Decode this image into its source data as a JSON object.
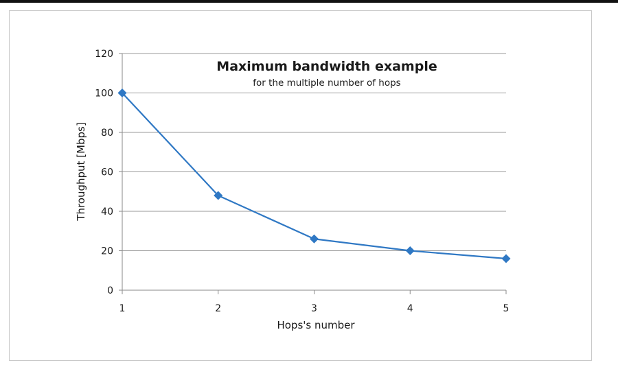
{
  "chart_data": {
    "type": "line",
    "title": "Maximum bandwidth example",
    "subtitle": "for the multiple number of hops",
    "xlabel": "Hops's number",
    "ylabel": "Throughput [Mbps]",
    "x": [
      1,
      2,
      3,
      4,
      5
    ],
    "xticks": [
      "1",
      "2",
      "3",
      "4",
      "5"
    ],
    "yticks": [
      "0",
      "20",
      "40",
      "60",
      "80",
      "100",
      "120"
    ],
    "ylim": [
      0,
      120
    ],
    "grid": "horizontal",
    "series": [
      {
        "values": [
          100,
          48,
          26,
          20,
          16
        ],
        "color": "#2f78c4",
        "marker": "diamond"
      }
    ]
  }
}
